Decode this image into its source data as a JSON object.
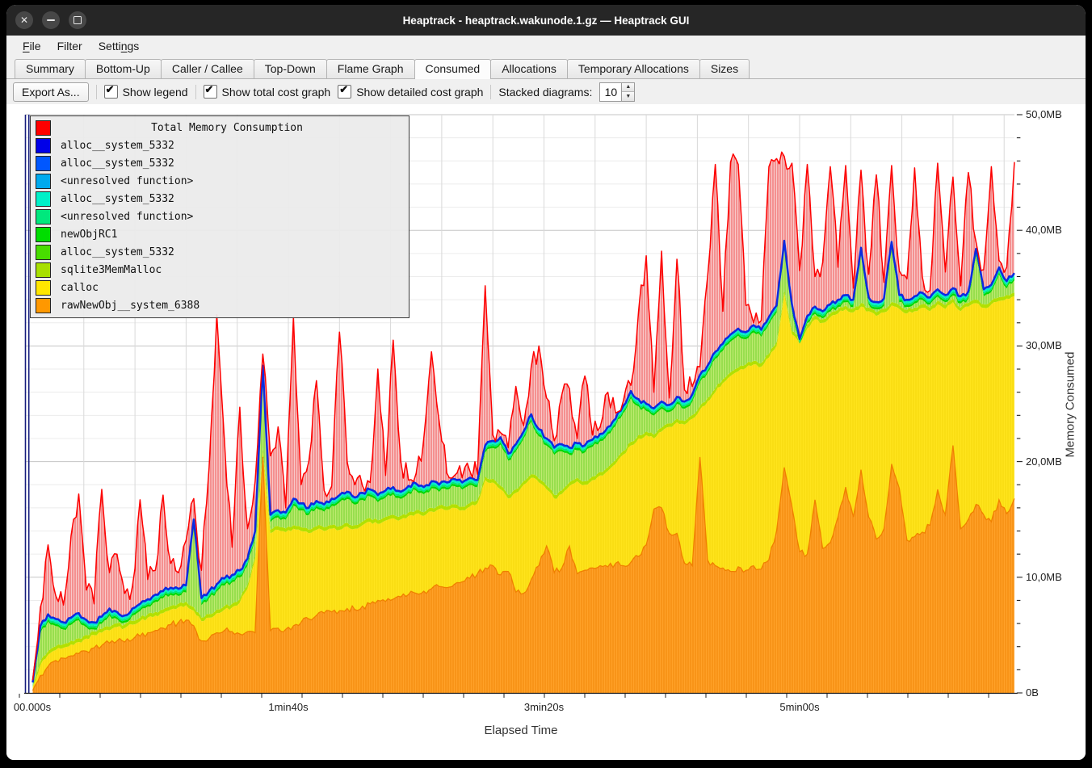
{
  "window": {
    "title": "Heaptrack - heaptrack.wakunode.1.gz — Heaptrack GUI",
    "controls": [
      "close",
      "minimize",
      "maximize"
    ]
  },
  "menu": {
    "items": [
      {
        "label": "File",
        "accel_index": 0
      },
      {
        "label": "Filter",
        "accel_index": -1
      },
      {
        "label": "Settings",
        "accel_index": 5
      }
    ]
  },
  "tabs": {
    "active": "Consumed",
    "items": [
      "Summary",
      "Bottom-Up",
      "Caller / Callee",
      "Top-Down",
      "Flame Graph",
      "Consumed",
      "Allocations",
      "Temporary Allocations",
      "Sizes"
    ]
  },
  "toolbar": {
    "export_label": "Export As...",
    "checkboxes": [
      {
        "label": "Show legend",
        "checked": true
      },
      {
        "label": "Show total cost graph",
        "checked": true
      },
      {
        "label": "Show detailed cost graph",
        "checked": true
      }
    ],
    "stacked_label": "Stacked diagrams:",
    "stacked_value": "10"
  },
  "chart_data": {
    "type": "area",
    "stacked": true,
    "unit": "MB",
    "sample_interval_s": 3,
    "x_axis": {
      "label": "Elapsed Time",
      "t_end": 384,
      "ticks": [
        {
          "t": 0,
          "label": "00.000s"
        },
        {
          "t": 100,
          "label": "1min40s"
        },
        {
          "t": 200,
          "label": "3min20s"
        },
        {
          "t": 300,
          "label": "5min00s"
        }
      ]
    },
    "y_axis": {
      "label": "Memory Consumed",
      "max_mb": 50,
      "minor_tick_mb": 2,
      "ticks": [
        {
          "mb": 0,
          "label": "0B"
        },
        {
          "mb": 10,
          "label": "10,0MB"
        },
        {
          "mb": 20,
          "label": "20,0MB"
        },
        {
          "mb": 30,
          "label": "30,0MB"
        },
        {
          "mb": 40,
          "label": "40,0MB"
        },
        {
          "mb": 50,
          "label": "50,0MB"
        }
      ]
    },
    "legend": {
      "title": "Total Memory Consumption",
      "title_color": "#ff0000",
      "entries": [
        {
          "label": "alloc__system_5332",
          "color": "#0000e8"
        },
        {
          "label": "alloc__system_5332",
          "color": "#0057ff"
        },
        {
          "label": "<unresolved function>",
          "color": "#00aaee"
        },
        {
          "label": "alloc__system_5332",
          "color": "#00f0c8"
        },
        {
          "label": "<unresolved function>",
          "color": "#00e87d"
        },
        {
          "label": "newObjRC1",
          "color": "#00dd00"
        },
        {
          "label": "alloc__system_5332",
          "color": "#48dd00"
        },
        {
          "label": "sqlite3MemMalloc",
          "color": "#a8e000"
        },
        {
          "label": "calloc",
          "color": "#ffe600"
        },
        {
          "label": "rawNewObj__system_6388",
          "color": "#ff9800"
        }
      ]
    },
    "series": [
      {
        "name": "Total Memory Consumption",
        "role": "total",
        "color": "#ff0000",
        "values": [
          1.1,
          7.4,
          12.8,
          8.4,
          7.6,
          13.6,
          17.2,
          8.9,
          7.7,
          17.6,
          10.4,
          12.0,
          8.6,
          9.2,
          16.7,
          9.8,
          10.6,
          17.1,
          11.2,
          10.4,
          13.2,
          16.8,
          10.6,
          19.5,
          32.7,
          21.8,
          12.6,
          24.7,
          14.2,
          18.3,
          29.3,
          20.5,
          23.0,
          16.0,
          32.5,
          18.0,
          20.0,
          27.0,
          17.5,
          17.9,
          31.2,
          20.0,
          18.0,
          17.9,
          18.2,
          28.0,
          18.8,
          30.5,
          20.0,
          18.4,
          19.0,
          22.0,
          29.5,
          23.5,
          19.0,
          18.8,
          18.6,
          19.2,
          18.9,
          35.2,
          22.3,
          22.5,
          21.2,
          26.5,
          23.1,
          28.2,
          30.0,
          25.5,
          21.8,
          25.8,
          26.3,
          22.0,
          27.4,
          22.3,
          23.0,
          26.0,
          24.2,
          25.2,
          26.6,
          33.0,
          37.8,
          26.0,
          38.2,
          25.5,
          37.5,
          26.2,
          26.5,
          28.2,
          36.0,
          45.7,
          33.0,
          45.9,
          45.7,
          33.5,
          32.0,
          32.2,
          45.5,
          46.2,
          46.4,
          45.8,
          36.5,
          45.7,
          36.0,
          37.2,
          45.5,
          36.8,
          45.6,
          35.0,
          45.2,
          36.2,
          44.8,
          35.5,
          45.6,
          36.5,
          35.8,
          45.4,
          36.0,
          34.8,
          45.8,
          36.4,
          44.6,
          35.2,
          45.0,
          39.0,
          36.6,
          45.5,
          37.4,
          36.8,
          45.9
        ]
      },
      {
        "name": "alloc__system_5332 (blue stack top)",
        "role": "stack_top",
        "color": "#0c2be0",
        "values": [
          0.9,
          5.8,
          6.8,
          6.4,
          6.1,
          6.5,
          6.9,
          6.3,
          6.1,
          6.6,
          7.3,
          7.0,
          6.7,
          7.3,
          7.7,
          8.1,
          8.5,
          8.8,
          9.1,
          9.0,
          9.3,
          15.0,
          8.2,
          8.8,
          9.4,
          9.9,
          10.2,
          10.6,
          11.6,
          14.0,
          28.3,
          15.4,
          15.8,
          15.6,
          16.8,
          16.4,
          16.0,
          16.6,
          16.3,
          16.8,
          17.1,
          17.4,
          16.9,
          17.3,
          17.6,
          17.1,
          17.5,
          17.8,
          17.4,
          17.9,
          18.1,
          17.8,
          18.3,
          18.0,
          18.2,
          18.5,
          18.2,
          18.6,
          18.4,
          21.4,
          21.8,
          22.1,
          20.7,
          21.5,
          22.6,
          24.1,
          22.8,
          22.0,
          21.2,
          21.5,
          21.2,
          21.6,
          21.4,
          21.9,
          22.4,
          23.0,
          23.7,
          24.8,
          26.1,
          25.4,
          25.0,
          24.6,
          25.2,
          24.9,
          25.6,
          25.2,
          25.8,
          27.5,
          28.3,
          29.5,
          30.2,
          31.0,
          31.5,
          31.2,
          31.8,
          31.4,
          32.5,
          33.5,
          39.1,
          33.6,
          30.6,
          32.6,
          33.4,
          33.0,
          33.6,
          34.0,
          34.4,
          34.0,
          38.5,
          34.2,
          33.8,
          34.1,
          39.0,
          34.4,
          34.0,
          34.3,
          34.6,
          34.2,
          34.9,
          34.4,
          35.0,
          34.3,
          34.7,
          38.4,
          34.9,
          35.3,
          36.8,
          35.6,
          36.3
        ]
      },
      {
        "name": "calloc (yellow band top)",
        "role": "yellow_top",
        "color": "#ffe600",
        "values": [
          0.5,
          2.4,
          3.3,
          3.7,
          3.9,
          4.2,
          4.4,
          4.7,
          5.0,
          5.2,
          5.4,
          5.7,
          5.6,
          5.9,
          6.2,
          6.5,
          6.7,
          6.9,
          7.2,
          7.4,
          7.6,
          7.1,
          6.2,
          6.5,
          6.9,
          7.2,
          7.4,
          7.8,
          9.0,
          11.5,
          20.9,
          13.8,
          14.1,
          13.9,
          14.2,
          14.0,
          13.8,
          14.1,
          14.0,
          14.2,
          14.1,
          14.4,
          14.2,
          14.5,
          14.8,
          14.6,
          14.9,
          15.1,
          15.0,
          15.3,
          15.5,
          15.3,
          15.7,
          15.9,
          15.8,
          16.0,
          15.8,
          16.1,
          16.4,
          18.4,
          18.2,
          17.6,
          16.8,
          17.3,
          18.0,
          18.6,
          18.2,
          17.6,
          16.8,
          17.2,
          17.9,
          18.3,
          18.0,
          18.4,
          18.8,
          19.2,
          19.8,
          20.6,
          21.4,
          22.0,
          22.3,
          22.0,
          22.6,
          23.0,
          23.4,
          23.2,
          23.7,
          24.5,
          25.2,
          26.0,
          26.8,
          27.4,
          27.8,
          28.1,
          28.4,
          28.2,
          29.0,
          30.0,
          34.5,
          31.0,
          30.2,
          31.5,
          32.3,
          32.0,
          32.5,
          32.8,
          33.2,
          32.9,
          33.4,
          33.0,
          32.6,
          32.9,
          33.5,
          33.2,
          32.8,
          33.0,
          33.3,
          33.0,
          33.6,
          33.2,
          33.8,
          33.0,
          33.4,
          33.7,
          33.3,
          33.6,
          33.9,
          34.1,
          34.3
        ]
      },
      {
        "name": "rawNewObj__system_6388 (orange band top)",
        "role": "orange_top",
        "color": "#ff9800",
        "values": [
          0.2,
          1.5,
          2.3,
          2.8,
          3.0,
          3.2,
          3.4,
          3.6,
          3.9,
          4.1,
          4.3,
          4.5,
          4.4,
          4.6,
          4.9,
          5.2,
          5.4,
          5.6,
          5.9,
          6.1,
          6.3,
          5.8,
          4.5,
          4.7,
          5.2,
          5.4,
          5.3,
          5.1,
          5.3,
          5.2,
          20.4,
          5.4,
          5.6,
          5.5,
          5.8,
          6.1,
          6.4,
          6.7,
          6.9,
          7.0,
          7.1,
          7.3,
          7.2,
          7.5,
          7.7,
          8.0,
          7.9,
          8.1,
          8.3,
          8.5,
          8.6,
          8.8,
          9.0,
          9.2,
          9.1,
          9.4,
          9.6,
          9.9,
          10.3,
          10.8,
          11.0,
          10.2,
          10.5,
          8.7,
          8.6,
          9.8,
          11.0,
          12.7,
          10.4,
          10.8,
          12.7,
          10.3,
          10.6,
          10.8,
          11.0,
          10.9,
          11.2,
          11.0,
          11.3,
          11.8,
          12.8,
          15.9,
          16.0,
          13.8,
          13.8,
          11.2,
          11.0,
          20.4,
          11.5,
          11.0,
          10.8,
          10.5,
          10.9,
          10.6,
          11.0,
          10.7,
          11.5,
          14.0,
          19.5,
          16.1,
          12.2,
          12.0,
          16.7,
          12.5,
          13.0,
          15.2,
          17.8,
          15.2,
          19.3,
          15.2,
          13.3,
          14.2,
          19.8,
          17.7,
          13.2,
          13.5,
          13.9,
          14.5,
          17.6,
          15.4,
          21.4,
          14.2,
          15.0,
          16.3,
          15.4,
          14.8,
          16.7,
          15.5,
          16.8
        ]
      }
    ]
  }
}
